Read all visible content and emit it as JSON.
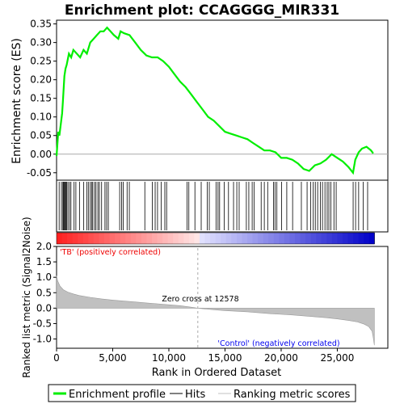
{
  "chart_data": {
    "type": "line",
    "title": "Enrichment plot: CCAGGGG_MIR331",
    "xlabel": "Rank in Ordered Dataset",
    "xlim": [
      0,
      29500
    ],
    "x_ticks": [
      "0",
      "5,000",
      "10,000",
      "15,000",
      "20,000",
      "25,000"
    ],
    "x_tick_values": [
      0,
      5000,
      10000,
      15000,
      20000,
      25000
    ],
    "es_panel": {
      "ylabel": "Enrichment score (ES)",
      "ylim": [
        -0.07,
        0.36
      ],
      "y_ticks": [
        "-0.05",
        "0.00",
        "0.05",
        "0.10",
        "0.15",
        "0.20",
        "0.25",
        "0.30",
        "0.35"
      ],
      "y_tick_values": [
        -0.05,
        0.0,
        0.05,
        0.1,
        0.15,
        0.2,
        0.25,
        0.3,
        0.35
      ],
      "series": [
        {
          "name": "Enrichment profile",
          "color": "#00ee00",
          "x": [
            0,
            150,
            250,
            500,
            560,
            700,
            800,
            900,
            1100,
            1300,
            1500,
            1800,
            2100,
            2400,
            2700,
            3000,
            3300,
            3600,
            3900,
            4200,
            4500,
            4800,
            5100,
            5500,
            5700,
            6000,
            6500,
            7000,
            7500,
            8000,
            8500,
            9000,
            9500,
            10000,
            10500,
            11000,
            11500,
            12000,
            12500,
            13000,
            13500,
            14000,
            14500,
            15000,
            15500,
            16000,
            16500,
            17000,
            17500,
            18000,
            18500,
            19000,
            19500,
            20000,
            20500,
            21000,
            21500,
            22000,
            22500,
            23000,
            23500,
            24000,
            24500,
            25000,
            25500,
            26000,
            26400,
            26600,
            26900,
            27200,
            27600,
            28000,
            28200
          ],
          "y": [
            -0.005,
            0.06,
            0.05,
            0.11,
            0.14,
            0.21,
            0.23,
            0.24,
            0.27,
            0.26,
            0.28,
            0.27,
            0.26,
            0.28,
            0.27,
            0.3,
            0.31,
            0.32,
            0.33,
            0.33,
            0.34,
            0.33,
            0.32,
            0.31,
            0.33,
            0.325,
            0.32,
            0.3,
            0.28,
            0.265,
            0.26,
            0.26,
            0.25,
            0.235,
            0.215,
            0.195,
            0.18,
            0.16,
            0.14,
            0.12,
            0.1,
            0.09,
            0.075,
            0.06,
            0.055,
            0.05,
            0.045,
            0.04,
            0.03,
            0.02,
            0.01,
            0.01,
            0.005,
            -0.01,
            -0.01,
            -0.015,
            -0.025,
            -0.04,
            -0.045,
            -0.03,
            -0.025,
            -0.015,
            0.0,
            -0.01,
            -0.02,
            -0.035,
            -0.05,
            -0.015,
            0.005,
            0.015,
            0.02,
            0.01,
            0.002
          ]
        }
      ]
    },
    "hits": [
      230,
      430,
      560,
      620,
      690,
      760,
      820,
      900,
      1010,
      1150,
      1280,
      1560,
      1720,
      2040,
      2420,
      2690,
      2830,
      3000,
      3120,
      3220,
      3380,
      3510,
      3680,
      3810,
      4010,
      4310,
      4460,
      4610,
      5620,
      5790,
      5940,
      6280,
      6480,
      7860,
      8520,
      8780,
      8990,
      9310,
      9640,
      9800,
      11620,
      11780,
      12320,
      12880,
      13420,
      13600,
      14200,
      14380,
      14520,
      14930,
      15310,
      15760,
      16050,
      16260,
      16900,
      17120,
      17420,
      17600,
      18220,
      18500,
      18800,
      19320,
      19450,
      19620,
      20040,
      20500,
      21020,
      21800,
      22310,
      22620,
      22860,
      23040,
      23250,
      23500,
      23680,
      23900,
      24100,
      24250,
      24430,
      24700,
      24900,
      26410,
      26630,
      26900,
      27310,
      27700
    ],
    "ranked_metric": {
      "ylabel": "Ranked list metric (Signal2Noise)",
      "ylim": [
        -1.3,
        2.0
      ],
      "y_ticks": [
        "-1.0",
        "-0.5",
        "0.0",
        "0.5",
        "1.0",
        "1.5",
        "2.0"
      ],
      "y_tick_values": [
        -1.0,
        -0.5,
        0.0,
        0.5,
        1.0,
        1.5,
        2.0
      ],
      "x": [
        0,
        100,
        300,
        600,
        1000,
        1500,
        2000,
        3000,
        4000,
        5000,
        6000,
        7000,
        8000,
        9000,
        10000,
        11000,
        12000,
        12578,
        13000,
        14000,
        15000,
        16000,
        17000,
        18000,
        19000,
        20000,
        21000,
        22000,
        23000,
        24000,
        25000,
        26000,
        26800,
        27400,
        27800,
        28100,
        28200,
        28300
      ],
      "y": [
        1.05,
        0.88,
        0.72,
        0.6,
        0.52,
        0.46,
        0.41,
        0.35,
        0.3,
        0.26,
        0.23,
        0.2,
        0.17,
        0.14,
        0.11,
        0.08,
        0.03,
        0.0,
        -0.02,
        -0.05,
        -0.08,
        -0.1,
        -0.12,
        -0.15,
        -0.18,
        -0.2,
        -0.22,
        -0.25,
        -0.28,
        -0.31,
        -0.35,
        -0.4,
        -0.45,
        -0.52,
        -0.6,
        -0.75,
        -0.95,
        -1.2
      ],
      "fill_color": "#c0c0c0",
      "zero_cross": 12578
    },
    "annotations": {
      "zero_cross_label": "Zero cross at 12578",
      "positive_label": "'TB' (positively correlated)",
      "negative_label": "'Control' (negatively correlated)"
    },
    "legend": {
      "placement": "bottom",
      "items": [
        {
          "label": "Enrichment profile",
          "color": "#00ee00",
          "style": "thick-line"
        },
        {
          "label": "Hits",
          "color": "#000000",
          "style": "line"
        },
        {
          "label": "Ranking metric scores",
          "color": "#c0c0c0",
          "style": "line"
        }
      ]
    },
    "colors": {
      "positive_text": "#ee0000",
      "negative_text": "#0000ee",
      "zero_line": "#aaaaaa"
    }
  }
}
